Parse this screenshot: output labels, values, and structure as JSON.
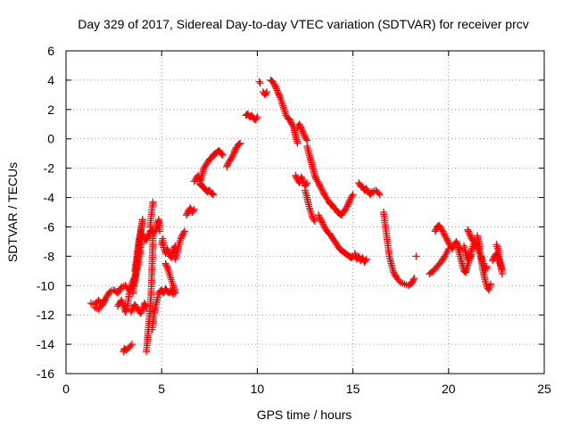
{
  "chart_data": {
    "type": "scatter",
    "title": "Day 329 of 2017, Sidereal Day-to-day VTEC variation (SDTVAR) for receiver prcv",
    "xlabel": "GPS time / hours",
    "ylabel": "SDTVAR / TECUs",
    "xlim": [
      0,
      25
    ],
    "ylim": [
      -16,
      6
    ],
    "xticks": [
      0,
      5,
      10,
      15,
      20,
      25
    ],
    "yticks": [
      -16,
      -14,
      -12,
      -10,
      -8,
      -6,
      -4,
      -2,
      0,
      2,
      4,
      6
    ],
    "grid": true,
    "marker": "+",
    "color": "#ff0000",
    "series": [
      {
        "name": "prcv",
        "segments": [
          {
            "x": [
              1.3,
              1.5,
              1.7,
              1.9,
              2.1,
              2.3,
              2.5,
              2.7,
              2.9,
              3.1,
              3.3,
              3.5,
              3.7,
              3.85,
              4.0,
              4.1,
              4.2,
              4.3,
              4.4,
              4.5,
              4.6
            ],
            "y": [
              -11.2,
              -11.3,
              -11.0,
              -11.3,
              -10.8,
              -10.4,
              -10.3,
              -10.5,
              -10.1,
              -10.0,
              -10.3,
              -10.0,
              -9.0,
              -8.0,
              -6.5,
              -6.8,
              -6.9,
              -6.6,
              -6.3,
              -6.2,
              -6.4
            ]
          },
          {
            "x": [
              1.5,
              1.7,
              1.9,
              2.0
            ],
            "y": [
              -11.5,
              -11.6,
              -11.3,
              -11.0
            ]
          },
          {
            "x": [
              2.7,
              2.9,
              3.1,
              3.2,
              3.3,
              3.4,
              3.55
            ],
            "y": [
              -11.4,
              -11.0,
              -11.8,
              -11.5,
              -10.6,
              -10.0,
              -9.5
            ]
          },
          {
            "x": [
              3.5,
              3.6,
              3.7,
              3.8,
              3.9,
              4.0
            ],
            "y": [
              -10.5,
              -9.5,
              -8.5,
              -7.5,
              -6.5,
              -5.5
            ]
          },
          {
            "x": [
              3.0,
              3.05,
              3.15,
              3.3,
              3.45
            ],
            "y": [
              -14.5,
              -14.3,
              -14.4,
              -14.2,
              -14.0
            ]
          },
          {
            "x": [
              3.4,
              3.5,
              3.6,
              3.7,
              3.8,
              3.9,
              4.0,
              4.1,
              4.2
            ],
            "y": [
              -11.8,
              -11.5,
              -11.3,
              -11.5,
              -11.7,
              -11.9,
              -11.6,
              -11.2,
              -11.5
            ]
          },
          {
            "x": [
              3.6,
              3.7,
              3.8,
              3.9,
              4.0
            ],
            "y": [
              -9.0,
              -8.0,
              -7.0,
              -6.3,
              -5.5
            ]
          },
          {
            "x": [
              4.2,
              4.25,
              4.3,
              4.35,
              4.4,
              4.45,
              4.5,
              4.55
            ],
            "y": [
              -14.5,
              -13.8,
              -13.0,
              -12.3,
              -11.5,
              -10.5,
              -8.5,
              -6.5
            ]
          },
          {
            "x": [
              4.4,
              4.45,
              4.5,
              4.55
            ],
            "y": [
              -6.0,
              -5.3,
              -4.7,
              -4.3
            ]
          },
          {
            "x": [
              4.5,
              4.6,
              4.7,
              4.8
            ],
            "y": [
              -13.0,
              -12.0,
              -11.3,
              -10.8
            ]
          },
          {
            "x": [
              4.7,
              4.75,
              4.8,
              4.85,
              4.9
            ],
            "y": [
              -6.2,
              -6.0,
              -5.7,
              -5.5,
              -6.3
            ]
          },
          {
            "x": [
              4.85,
              4.9,
              5.0,
              5.1,
              5.2,
              5.3,
              5.4,
              5.5,
              5.6
            ],
            "y": [
              -10.6,
              -10.4,
              -10.3,
              -10.5,
              -10.2,
              -10.4,
              -10.5,
              -10.3,
              -10.6
            ]
          },
          {
            "x": [
              5.0,
              5.05,
              5.1,
              5.2,
              5.3,
              5.4,
              5.5,
              5.6,
              5.7
            ],
            "y": [
              -7.2,
              -6.8,
              -7.4,
              -7.8,
              -7.5,
              -7.9,
              -8.1,
              -7.6,
              -7.3
            ]
          },
          {
            "x": [
              5.2,
              5.3,
              5.4,
              5.5,
              5.6,
              5.7
            ],
            "y": [
              -8.5,
              -8.8,
              -9.2,
              -9.6,
              -10.0,
              -10.5
            ]
          },
          {
            "x": [
              5.7,
              5.8,
              5.9,
              6.0,
              6.1,
              6.2
            ],
            "y": [
              -8.2,
              -7.8,
              -7.2,
              -6.8,
              -6.5,
              -6.3
            ]
          },
          {
            "x": [
              6.3,
              6.4,
              6.5,
              6.6,
              6.7
            ],
            "y": [
              -5.2,
              -4.9,
              -4.7,
              -5.0,
              -4.8
            ]
          },
          {
            "x": [
              7.0,
              7.1,
              7.2,
              7.3,
              7.4,
              7.5,
              7.6,
              7.7,
              7.8,
              7.9,
              8.0,
              8.1,
              8.2
            ],
            "y": [
              -3.0,
              -2.5,
              -2.0,
              -1.8,
              -1.6,
              -1.4,
              -1.3,
              -1.1,
              -1.0,
              -0.9,
              -0.8,
              -1.0,
              -1.1
            ]
          },
          {
            "x": [
              6.7,
              6.8,
              6.9,
              7.0
            ],
            "y": [
              -2.9,
              -2.7,
              -2.5,
              -2.8
            ]
          },
          {
            "x": [
              7.0,
              7.1,
              7.2,
              7.3,
              7.4,
              7.5,
              7.6,
              7.7
            ],
            "y": [
              -3.1,
              -3.2,
              -3.3,
              -3.5,
              -3.6,
              -3.5,
              -3.7,
              -3.8
            ]
          },
          {
            "x": [
              8.4,
              8.5,
              8.6,
              8.7,
              8.8,
              8.9,
              9.0,
              9.1
            ],
            "y": [
              -1.9,
              -1.6,
              -1.4,
              -1.2,
              -0.9,
              -0.6,
              -0.4,
              -0.3
            ]
          },
          {
            "x": [
              9.4,
              9.5,
              9.6,
              9.7,
              9.8,
              9.9,
              10.0
            ],
            "y": [
              1.6,
              1.7,
              1.5,
              1.6,
              1.4,
              1.3,
              1.5
            ]
          },
          {
            "x": [
              10.1,
              10.15
            ],
            "y": [
              3.9,
              3.8
            ]
          },
          {
            "x": [
              10.3,
              10.4,
              10.5
            ],
            "y": [
              3.2,
              3.0,
              3.2
            ]
          },
          {
            "x": [
              10.7,
              10.8,
              10.9,
              11.0,
              11.1,
              11.2,
              11.3,
              11.4,
              11.5,
              11.6,
              11.7,
              11.8,
              11.9,
              12.0,
              12.1
            ],
            "y": [
              4.0,
              3.9,
              3.7,
              3.4,
              3.1,
              2.8,
              2.4,
              2.0,
              1.6,
              1.4,
              1.3,
              1.0,
              0.8,
              0.2,
              -0.3
            ]
          },
          {
            "x": [
              12.1,
              12.2,
              12.3,
              12.4,
              12.5,
              12.6
            ],
            "y": [
              0.8,
              1.0,
              0.7,
              0.4,
              0.1,
              -0.1
            ]
          },
          {
            "x": [
              12.0,
              12.1,
              12.2,
              12.3,
              12.4,
              12.5,
              12.6
            ],
            "y": [
              -2.5,
              -2.8,
              -3.0,
              -2.6,
              -2.9,
              -3.2,
              -3.0
            ]
          },
          {
            "x": [
              12.6,
              12.7,
              12.8,
              12.9,
              13.0,
              13.1,
              13.2,
              13.3,
              13.4,
              13.5,
              13.6,
              13.7,
              13.8,
              13.9,
              14.0,
              14.1,
              14.2,
              14.3,
              14.4,
              14.5,
              14.6,
              14.7,
              14.8,
              14.9,
              15.0
            ],
            "y": [
              -0.5,
              -1.0,
              -1.5,
              -2.0,
              -2.5,
              -2.8,
              -3.0,
              -3.3,
              -3.5,
              -3.8,
              -4.0,
              -4.2,
              -4.4,
              -4.5,
              -4.7,
              -4.8,
              -5.0,
              -5.1,
              -5.2,
              -5.0,
              -4.8,
              -4.6,
              -4.3,
              -4.0,
              -3.8
            ]
          },
          {
            "x": [
              12.5,
              12.6,
              12.7,
              12.8,
              12.9,
              13.0
            ],
            "y": [
              -3.5,
              -4.0,
              -4.6,
              -5.0,
              -5.4,
              -5.6
            ]
          },
          {
            "x": [
              13.2,
              13.3,
              13.4,
              13.5,
              13.6,
              13.7,
              13.8,
              13.9,
              14.0,
              14.1,
              14.2,
              14.3,
              14.4,
              14.5,
              14.6,
              14.7,
              14.8,
              14.9,
              15.0
            ],
            "y": [
              -5.2,
              -5.5,
              -5.7,
              -6.0,
              -6.2,
              -6.4,
              -6.5,
              -6.7,
              -6.9,
              -7.1,
              -7.3,
              -7.5,
              -7.6,
              -7.7,
              -7.8,
              -7.9,
              -8.0,
              -8.1,
              -8.0
            ]
          },
          {
            "x": [
              15.1,
              15.2,
              15.3,
              15.4,
              15.5,
              15.6,
              15.7
            ],
            "y": [
              -7.8,
              -8.2,
              -8.0,
              -8.3,
              -8.1,
              -8.4,
              -8.2
            ]
          },
          {
            "x": [
              15.3,
              15.4,
              15.5,
              15.6,
              15.7,
              15.8,
              15.9,
              16.0,
              16.2,
              16.4
            ],
            "y": [
              -3.0,
              -3.2,
              -3.3,
              -3.5,
              -3.4,
              -3.6,
              -3.8,
              -3.6,
              -3.5,
              -3.8
            ]
          },
          {
            "x": [
              16.6,
              16.7,
              16.8,
              16.9,
              17.0,
              17.1,
              17.2,
              17.3,
              17.5,
              17.7,
              17.9,
              18.1,
              18.2
            ],
            "y": [
              -5.0,
              -6.0,
              -7.0,
              -8.0,
              -8.5,
              -9.0,
              -9.3,
              -9.5,
              -9.8,
              -9.9,
              -10.0,
              -9.8,
              -9.5
            ]
          },
          {
            "x": [
              18.3
            ],
            "y": [
              -8.0
            ]
          },
          {
            "x": [
              19.0,
              19.2,
              19.4,
              19.6,
              19.8,
              20.0
            ],
            "y": [
              -9.2,
              -9.0,
              -8.7,
              -8.4,
              -8.0,
              -7.5
            ]
          },
          {
            "x": [
              19.3,
              19.4,
              19.5,
              19.6,
              19.7,
              19.8,
              19.9,
              20.0,
              20.1,
              20.2,
              20.3,
              20.4,
              20.5,
              20.6
            ],
            "y": [
              -6.3,
              -6.0,
              -5.9,
              -6.1,
              -6.3,
              -6.6,
              -6.8,
              -7.1,
              -7.3,
              -7.5,
              -7.2,
              -7.0,
              -7.3,
              -7.6
            ]
          },
          {
            "x": [
              20.5,
              20.6,
              20.7,
              20.8,
              20.9,
              21.0,
              21.1,
              21.2
            ],
            "y": [
              -7.5,
              -8.0,
              -8.5,
              -9.0,
              -9.1,
              -8.6,
              -8.2,
              -7.9
            ]
          },
          {
            "x": [
              20.8,
              20.9,
              21.0,
              21.1,
              21.2,
              21.3,
              21.4,
              21.5,
              21.6
            ],
            "y": [
              -7.3,
              -7.8,
              -8.2,
              -8.0,
              -7.6,
              -7.2,
              -7.0,
              -7.4,
              -7.8
            ]
          },
          {
            "x": [
              21.0,
              21.1,
              21.2,
              21.3
            ],
            "y": [
              -6.2,
              -6.5,
              -6.8,
              -7.0
            ]
          },
          {
            "x": [
              21.5,
              21.6,
              21.7,
              21.8,
              21.9,
              22.0,
              22.1,
              22.2
            ],
            "y": [
              -6.6,
              -7.2,
              -8.2,
              -9.0,
              -9.6,
              -10.1,
              -10.3,
              -9.9
            ]
          },
          {
            "x": [
              21.7,
              21.8,
              21.9,
              22.0
            ],
            "y": [
              -8.0,
              -8.5,
              -9.0,
              -8.7
            ]
          },
          {
            "x": [
              22.3,
              22.4,
              22.5,
              22.6,
              22.7,
              22.8
            ],
            "y": [
              -8.3,
              -8.0,
              -7.8,
              -8.2,
              -8.6,
              -8.9
            ]
          },
          {
            "x": [
              22.5,
              22.6,
              22.7,
              22.8
            ],
            "y": [
              -7.2,
              -7.6,
              -8.4,
              -9.2
            ]
          }
        ]
      }
    ]
  }
}
